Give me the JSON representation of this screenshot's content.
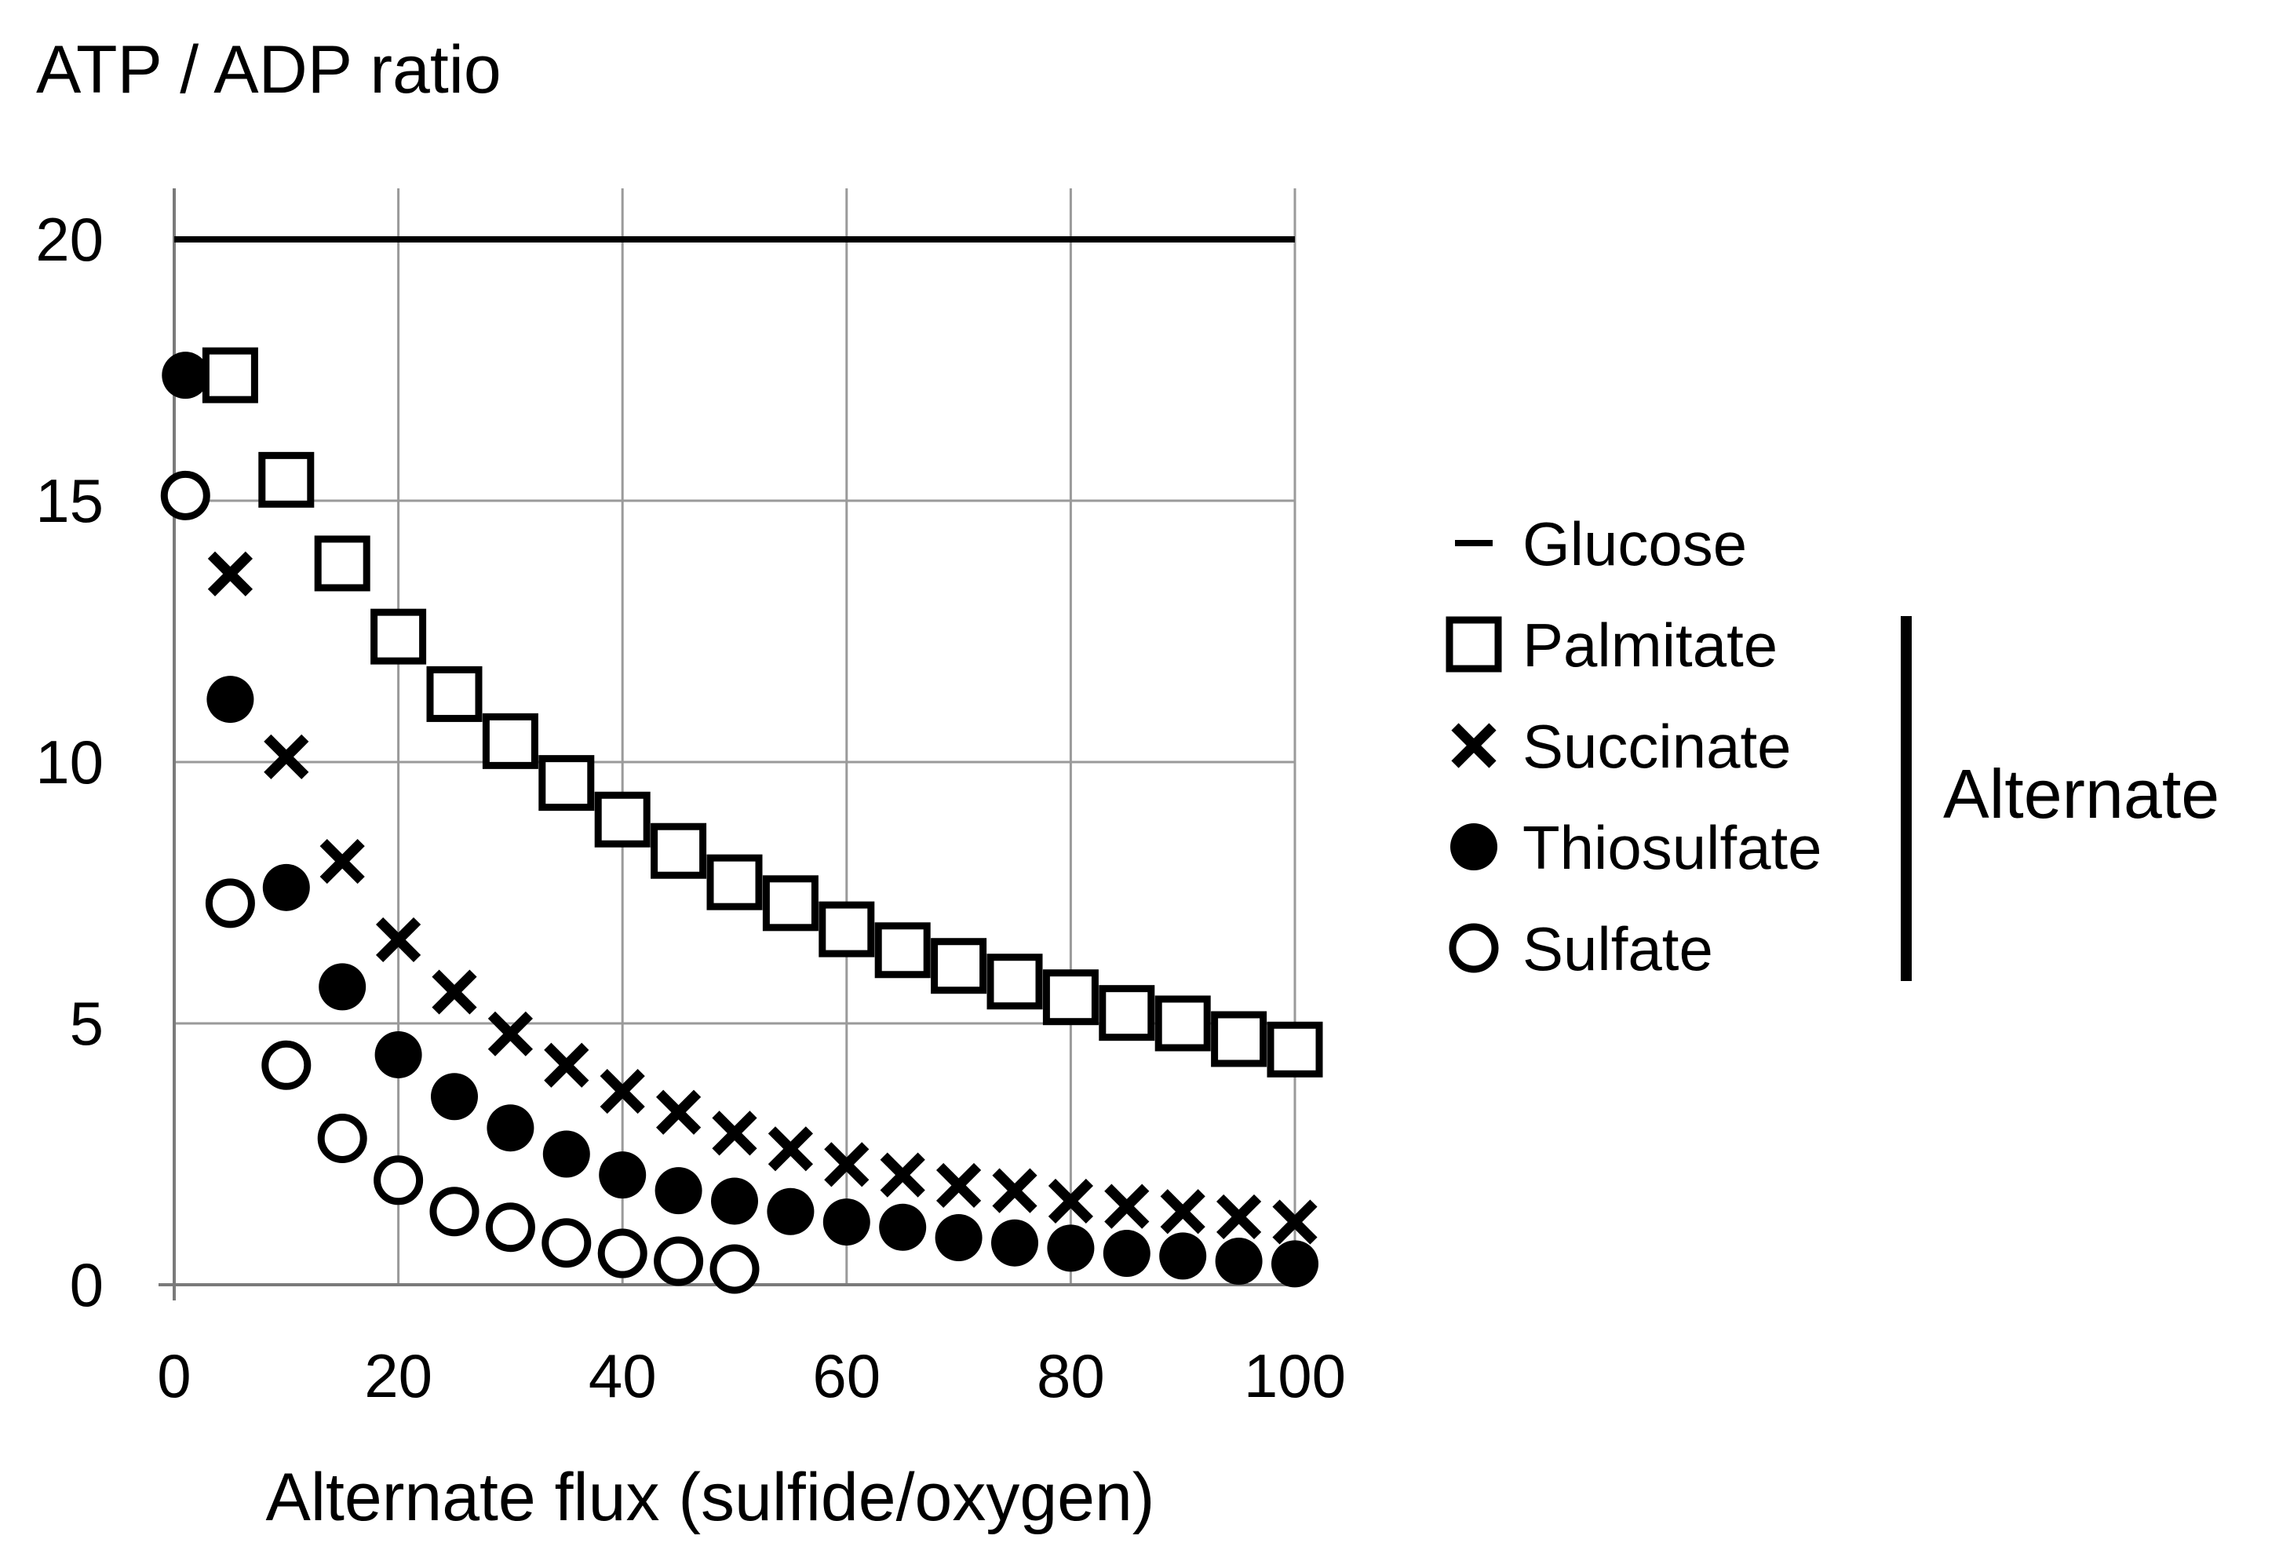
{
  "chart_data": {
    "type": "scatter",
    "title": "",
    "ylabel": "ATP / ADP ratio",
    "xlabel": "Alternate flux (sulfide/oxygen)",
    "xlim": [
      0,
      100
    ],
    "ylim": [
      0,
      20
    ],
    "x_ticks": [
      "0",
      "20",
      "40",
      "60",
      "80",
      "100"
    ],
    "y_ticks": [
      "0",
      "5",
      "10",
      "15",
      "20"
    ],
    "grid": true,
    "legend_position": "right",
    "series": [
      {
        "name": "Glucose",
        "marker": "line",
        "x": [
          0,
          100
        ],
        "y": [
          20,
          20
        ]
      },
      {
        "name": "Palmitate",
        "marker": "open-square",
        "x": [
          5,
          10,
          15,
          20,
          25,
          30,
          35,
          40,
          45,
          50,
          55,
          60,
          65,
          70,
          75,
          80,
          85,
          90,
          95,
          100
        ],
        "y": [
          17.4,
          15.4,
          13.8,
          12.4,
          11.3,
          10.4,
          9.6,
          8.9,
          8.3,
          7.7,
          7.3,
          6.8,
          6.4,
          6.1,
          5.8,
          5.5,
          5.2,
          5.0,
          4.7,
          4.5
        ]
      },
      {
        "name": "Succinate",
        "marker": "x",
        "x": [
          5,
          10,
          15,
          20,
          25,
          30,
          35,
          40,
          45,
          50,
          55,
          60,
          65,
          70,
          75,
          80,
          85,
          90,
          95,
          100
        ],
        "y": [
          13.6,
          10.1,
          8.1,
          6.6,
          5.6,
          4.8,
          4.2,
          3.7,
          3.3,
          2.9,
          2.6,
          2.3,
          2.1,
          1.9,
          1.8,
          1.6,
          1.5,
          1.4,
          1.3,
          1.2
        ]
      },
      {
        "name": "Thiosulfate",
        "marker": "filled-circle",
        "x": [
          1,
          5,
          10,
          15,
          20,
          25,
          30,
          35,
          40,
          45,
          50,
          55,
          60,
          65,
          70,
          75,
          80,
          85,
          90,
          95,
          100
        ],
        "y": [
          17.4,
          11.2,
          7.6,
          5.7,
          4.4,
          3.6,
          3.0,
          2.5,
          2.1,
          1.8,
          1.6,
          1.4,
          1.2,
          1.1,
          0.9,
          0.8,
          0.7,
          0.6,
          0.55,
          0.45,
          0.4
        ]
      },
      {
        "name": "Sulfate",
        "marker": "open-circle",
        "x": [
          1,
          5,
          10,
          15,
          20,
          25,
          30,
          35,
          40,
          45,
          50
        ],
        "y": [
          15.1,
          7.3,
          4.2,
          2.8,
          2.0,
          1.4,
          1.1,
          0.8,
          0.6,
          0.45,
          0.3
        ]
      }
    ],
    "group_annotation": {
      "label": "Alternate",
      "members": [
        "Palmitate",
        "Succinate",
        "Thiosulfate",
        "Sulfate"
      ]
    }
  }
}
